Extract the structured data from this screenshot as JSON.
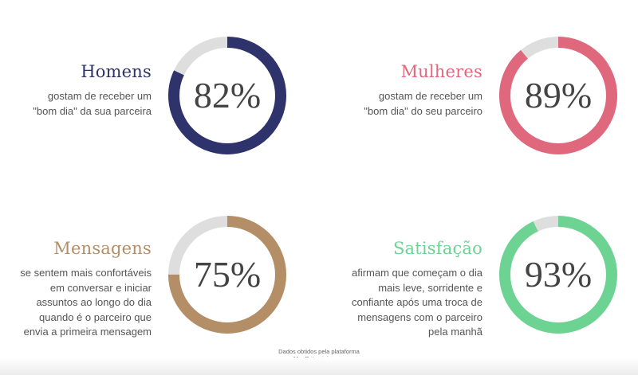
{
  "chart_data": [
    {
      "type": "pie",
      "variant": "donut",
      "title": "Homens",
      "description": [
        "gostam de receber um",
        "\"bom dia\" da sua parceira"
      ],
      "value": 82,
      "label": "82%",
      "color": "#2e336b",
      "remainder_color": "#dedede"
    },
    {
      "type": "pie",
      "variant": "donut",
      "title": "Mulheres",
      "description": [
        "gostam de receber um",
        "\"bom dia\" do seu parceiro"
      ],
      "value": 89,
      "label": "89%",
      "color": "#e0687c",
      "remainder_color": "#dedede"
    },
    {
      "type": "pie",
      "variant": "donut",
      "title": "Mensagens",
      "description": [
        "se sentem mais confortáveis",
        "em conversar e iniciar",
        "assuntos ao longo do dia",
        "quando é o parceiro que",
        "envia a primeira mensagem"
      ],
      "value": 75,
      "label": "75%",
      "color": "#b38e66",
      "remainder_color": "#dedede"
    },
    {
      "type": "pie",
      "variant": "donut",
      "title": "Satisfação",
      "description": [
        "afirmam que começam o dia",
        "mais leve, sorridente e",
        "confiante após uma troca de",
        "mensagens com o parceiro",
        "pela manhã"
      ],
      "value": 93,
      "label": "93%",
      "color": "#6dd393",
      "remainder_color": "#dedede"
    }
  ],
  "footer": {
    "line1": "Dados obtidos pela plataforma",
    "line2": "MeuPatrocinio.com"
  }
}
